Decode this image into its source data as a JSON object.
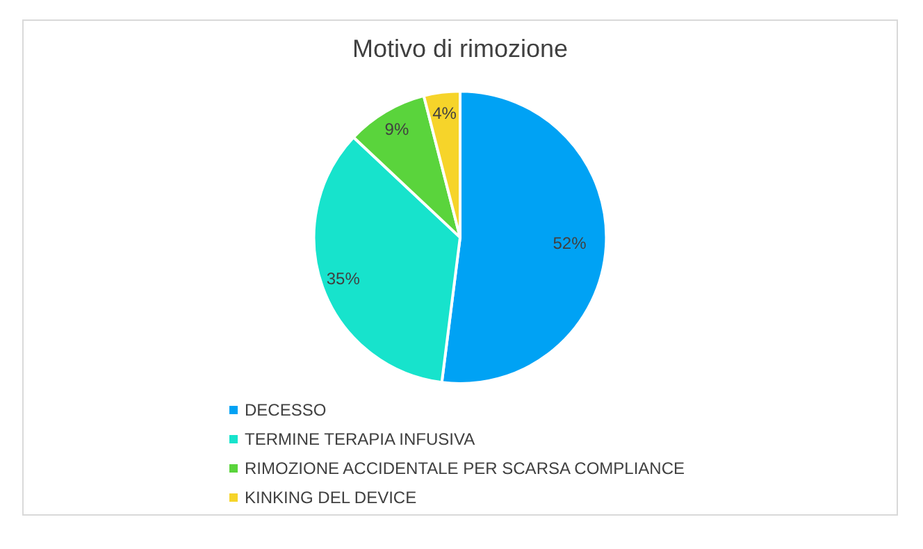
{
  "chart_data": {
    "type": "pie",
    "title": "Motivo di rimozione",
    "categories": [
      "DECESSO",
      "TERMINE TERAPIA INFUSIVA",
      "RIMOZIONE ACCIDENTALE PER SCARSA COMPLIANCE",
      "KINKING DEL DEVICE"
    ],
    "values": [
      52,
      35,
      9,
      4
    ],
    "colors": [
      "#00a2f4",
      "#17e3cc",
      "#5ad43c",
      "#f6d42a"
    ],
    "value_labels": [
      "52%",
      "35%",
      "9%",
      "4%"
    ],
    "legend": "bottom"
  }
}
